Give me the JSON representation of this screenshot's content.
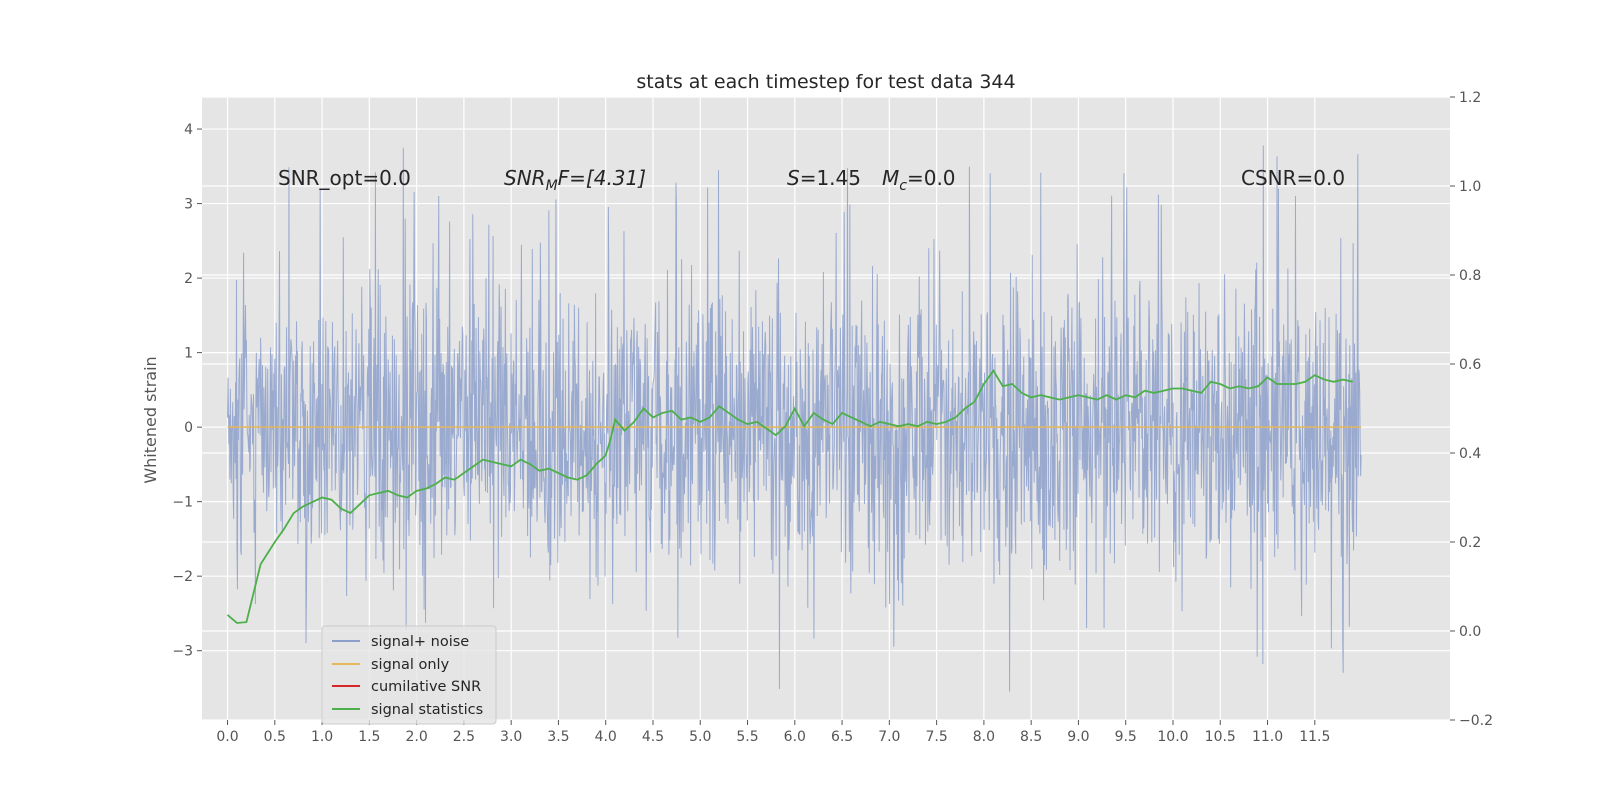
{
  "chart_data": {
    "type": "line",
    "title": "stats at each timestep for test data 344",
    "xlabel": "",
    "ylabel": "Whitened strain",
    "xlim": [
      -0.27,
      12.93
    ],
    "ylim": [
      -3.93,
      4.43
    ],
    "ylim_right": [
      -0.2,
      1.2
    ],
    "x_ticks": [
      "0.0",
      "0.5",
      "1.0",
      "1.5",
      "2.0",
      "2.5",
      "3.0",
      "3.5",
      "4.0",
      "4.5",
      "5.0",
      "5.5",
      "6.0",
      "6.5",
      "7.0",
      "7.5",
      "8.0",
      "8.5",
      "9.0",
      "9.5",
      "10.0",
      "10.5",
      "11.0",
      "11.5"
    ],
    "y_ticks": [
      "4",
      "3",
      "2",
      "1",
      "0",
      "−1",
      "−2",
      "−3"
    ],
    "y_right_ticks": [
      "1.2",
      "1.0",
      "0.8",
      "0.6",
      "0.4",
      "0.2",
      "0.0",
      "−0.2"
    ],
    "grid": true,
    "legend_position": "lower-left",
    "annotations": {
      "snr_opt": "SNR_opt=0.0",
      "snr_mf_symbol": "SNR",
      "snr_mf_sub": "M",
      "snr_mf_rest": "F=[4.31]",
      "s_symbol": "S",
      "s_value": "=1.45",
      "mc_symbol": "M",
      "mc_sub": "c",
      "mc_value": "=0.0",
      "csnr": "CSNR=0.0"
    },
    "series": [
      {
        "name": "signal+ noise",
        "color": "#8da0cb",
        "axis": "left",
        "description": "whitened noisy strain, dense oscillation roughly between -2 and 2 with spikes up to about 4 and down to about -3.5",
        "x_range": [
          0.0,
          11.99
        ],
        "envelope": [
          -2.0,
          2.0
        ],
        "max": 4.08,
        "min": -3.55
      },
      {
        "name": "signal only",
        "color": "#e5b65a",
        "axis": "left",
        "x": [
          0.0,
          11.99
        ],
        "y": [
          0.0,
          0.0
        ]
      },
      {
        "name": "cumilative SNR",
        "color": "#d62728",
        "axis": "right",
        "x": [],
        "y": []
      },
      {
        "name": "signal statistics",
        "color": "#4daf4a",
        "axis": "right",
        "x": [
          0.0,
          0.1,
          0.2,
          0.35,
          0.5,
          0.6,
          0.7,
          0.8,
          0.9,
          1.0,
          1.1,
          1.2,
          1.3,
          1.4,
          1.5,
          1.6,
          1.7,
          1.8,
          1.9,
          2.0,
          2.1,
          2.2,
          2.3,
          2.4,
          2.5,
          2.6,
          2.7,
          2.8,
          2.9,
          3.0,
          3.1,
          3.2,
          3.3,
          3.4,
          3.5,
          3.6,
          3.7,
          3.8,
          3.9,
          4.0,
          4.05,
          4.1,
          4.2,
          4.3,
          4.4,
          4.5,
          4.6,
          4.7,
          4.8,
          4.9,
          5.0,
          5.1,
          5.2,
          5.3,
          5.4,
          5.5,
          5.6,
          5.7,
          5.8,
          5.9,
          6.0,
          6.1,
          6.2,
          6.3,
          6.4,
          6.5,
          6.6,
          6.7,
          6.8,
          6.9,
          7.0,
          7.1,
          7.2,
          7.3,
          7.4,
          7.5,
          7.6,
          7.7,
          7.8,
          7.9,
          8.0,
          8.1,
          8.2,
          8.3,
          8.4,
          8.5,
          8.6,
          8.7,
          8.8,
          8.9,
          9.0,
          9.1,
          9.2,
          9.3,
          9.4,
          9.5,
          9.6,
          9.7,
          9.8,
          9.9,
          10.0,
          10.1,
          10.2,
          10.3,
          10.4,
          10.5,
          10.6,
          10.7,
          10.8,
          10.9,
          11.0,
          11.1,
          11.2,
          11.3,
          11.4,
          11.5,
          11.6,
          11.7,
          11.8,
          11.9
        ],
        "y": [
          0.036,
          0.018,
          0.02,
          0.15,
          0.2,
          0.23,
          0.265,
          0.28,
          0.29,
          0.3,
          0.295,
          0.275,
          0.265,
          0.285,
          0.305,
          0.31,
          0.315,
          0.305,
          0.3,
          0.315,
          0.32,
          0.33,
          0.345,
          0.34,
          0.355,
          0.37,
          0.385,
          0.38,
          0.375,
          0.37,
          0.385,
          0.375,
          0.36,
          0.365,
          0.355,
          0.345,
          0.34,
          0.35,
          0.375,
          0.395,
          0.43,
          0.475,
          0.45,
          0.47,
          0.5,
          0.48,
          0.49,
          0.495,
          0.475,
          0.48,
          0.47,
          0.48,
          0.505,
          0.49,
          0.475,
          0.465,
          0.47,
          0.455,
          0.44,
          0.46,
          0.5,
          0.46,
          0.49,
          0.475,
          0.465,
          0.49,
          0.48,
          0.47,
          0.46,
          0.47,
          0.465,
          0.46,
          0.465,
          0.46,
          0.47,
          0.465,
          0.47,
          0.48,
          0.5,
          0.515,
          0.555,
          0.585,
          0.55,
          0.555,
          0.535,
          0.525,
          0.53,
          0.525,
          0.52,
          0.525,
          0.53,
          0.525,
          0.52,
          0.53,
          0.52,
          0.53,
          0.525,
          0.54,
          0.535,
          0.54,
          0.545,
          0.545,
          0.54,
          0.535,
          0.56,
          0.555,
          0.545,
          0.55,
          0.545,
          0.55,
          0.57,
          0.555,
          0.555,
          0.555,
          0.56,
          0.575,
          0.565,
          0.56,
          0.565,
          0.56
        ]
      }
    ]
  }
}
